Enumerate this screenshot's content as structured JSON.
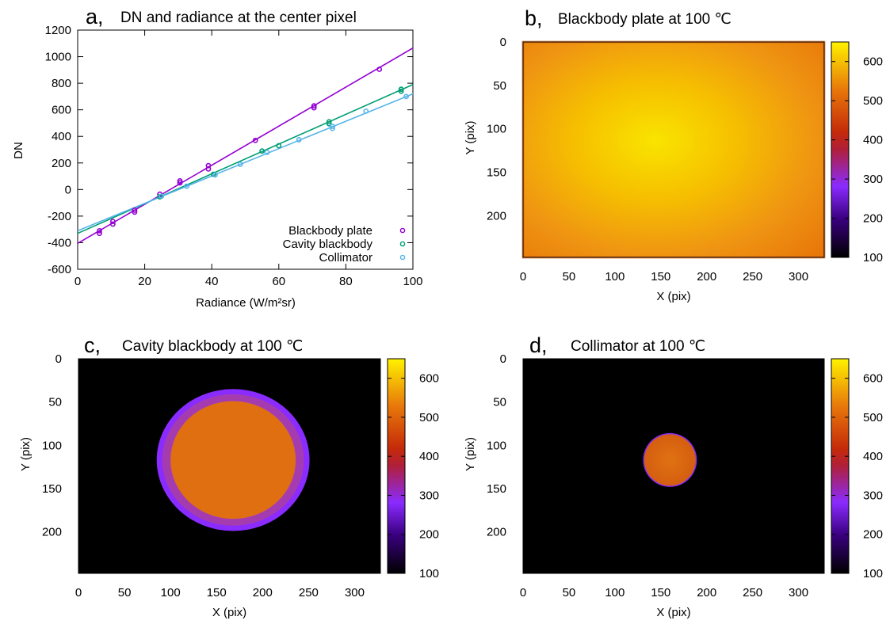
{
  "chart_data": [
    {
      "panel_letter": "a,",
      "type": "scatter",
      "title": "DN and radiance at the center pixel",
      "xlabel": "Radiance (W/m²sr)",
      "ylabel": "DN",
      "xlim": [
        0,
        100
      ],
      "ylim": [
        -600,
        1200
      ],
      "xticks": [
        0,
        20,
        40,
        60,
        80,
        100
      ],
      "yticks": [
        -600,
        -400,
        -200,
        0,
        200,
        400,
        600,
        800,
        1000,
        1200
      ],
      "grid": false,
      "legend_position": "bottom-right",
      "series": [
        {
          "name": "Blackbody plate",
          "color": "#9400d3",
          "points": [
            [
              6.5,
              -330
            ],
            [
              6.5,
              -310
            ],
            [
              10.5,
              -260
            ],
            [
              10.5,
              -240
            ],
            [
              17,
              -170
            ],
            [
              17,
              -155
            ],
            [
              24.5,
              -35
            ],
            [
              30.5,
              50
            ],
            [
              30.5,
              65
            ],
            [
              39,
              155
            ],
            [
              39,
              180
            ],
            [
              53,
              370
            ],
            [
              70.5,
              615
            ],
            [
              70.5,
              630
            ],
            [
              90,
              905
            ]
          ],
          "fit": [
            [
              0,
              -405
            ],
            [
              100,
              1065
            ]
          ]
        },
        {
          "name": "Cavity blackbody",
          "color": "#009e73",
          "points": [
            [
              24.5,
              -55
            ],
            [
              40.5,
              115
            ],
            [
              55,
              290
            ],
            [
              60,
              330
            ],
            [
              75,
              495
            ],
            [
              75,
              510
            ],
            [
              96.5,
              740
            ],
            [
              96.5,
              755
            ]
          ],
          "fit": [
            [
              0,
              -330
            ],
            [
              100,
              790
            ]
          ]
        },
        {
          "name": "Collimator",
          "color": "#56b4e9",
          "points": [
            [
              25,
              -50
            ],
            [
              32.5,
              25
            ],
            [
              41,
              110
            ],
            [
              48.5,
              190
            ],
            [
              56.5,
              280
            ],
            [
              66,
              375
            ],
            [
              76,
              460
            ],
            [
              76,
              475
            ],
            [
              86,
              590
            ],
            [
              98,
              700
            ]
          ],
          "fit": [
            [
              0,
              -310
            ],
            [
              100,
              720
            ]
          ]
        }
      ]
    },
    {
      "panel_letter": "b,",
      "type": "heatmap",
      "title": "Blackbody plate at 100 ℃",
      "xlabel": "X (pix)",
      "ylabel": "Y (pix)",
      "xlim": [
        0,
        328
      ],
      "ylim": [
        0,
        248
      ],
      "xticks": [
        0,
        50,
        100,
        150,
        200,
        250,
        300
      ],
      "yticks": [
        0,
        50,
        100,
        150,
        200
      ],
      "colorbar": {
        "range": [
          100,
          650
        ],
        "ticks": [
          100,
          200,
          300,
          400,
          500,
          600
        ]
      },
      "center_x": 150,
      "center_y": 120,
      "peak_value": 620,
      "edge_value": 500
    },
    {
      "panel_letter": "c,",
      "type": "heatmap",
      "title": "Cavity blackbody at 100 ℃",
      "xlabel": "X (pix)",
      "ylabel": "Y (pix)",
      "xlim": [
        0,
        328
      ],
      "ylim": [
        0,
        248
      ],
      "xticks": [
        0,
        50,
        100,
        150,
        200,
        250,
        300
      ],
      "yticks": [
        0,
        50,
        100,
        150,
        200
      ],
      "colorbar": {
        "range": [
          100,
          650
        ],
        "ticks": [
          100,
          200,
          300,
          400,
          500,
          600
        ]
      },
      "center_x": 168,
      "center_y": 117,
      "inner_radius_x": 68,
      "inner_radius_y": 68,
      "outer_radius_x": 83,
      "outer_radius_y": 82,
      "inner_value": 520,
      "ring_value": 280,
      "background_value": 100
    },
    {
      "panel_letter": "d,",
      "type": "heatmap",
      "title": "Collimator at 100 ℃",
      "xlabel": "X (pix)",
      "ylabel": "Y (pix)",
      "xlim": [
        0,
        328
      ],
      "ylim": [
        0,
        248
      ],
      "xticks": [
        0,
        50,
        100,
        150,
        200,
        250,
        300
      ],
      "yticks": [
        0,
        50,
        100,
        150,
        200
      ],
      "colorbar": {
        "range": [
          100,
          650
        ],
        "ticks": [
          100,
          200,
          300,
          400,
          500,
          600
        ]
      },
      "center_x": 160,
      "center_y": 117,
      "radius": 28,
      "spot_value": 450,
      "background_value": 100
    }
  ]
}
